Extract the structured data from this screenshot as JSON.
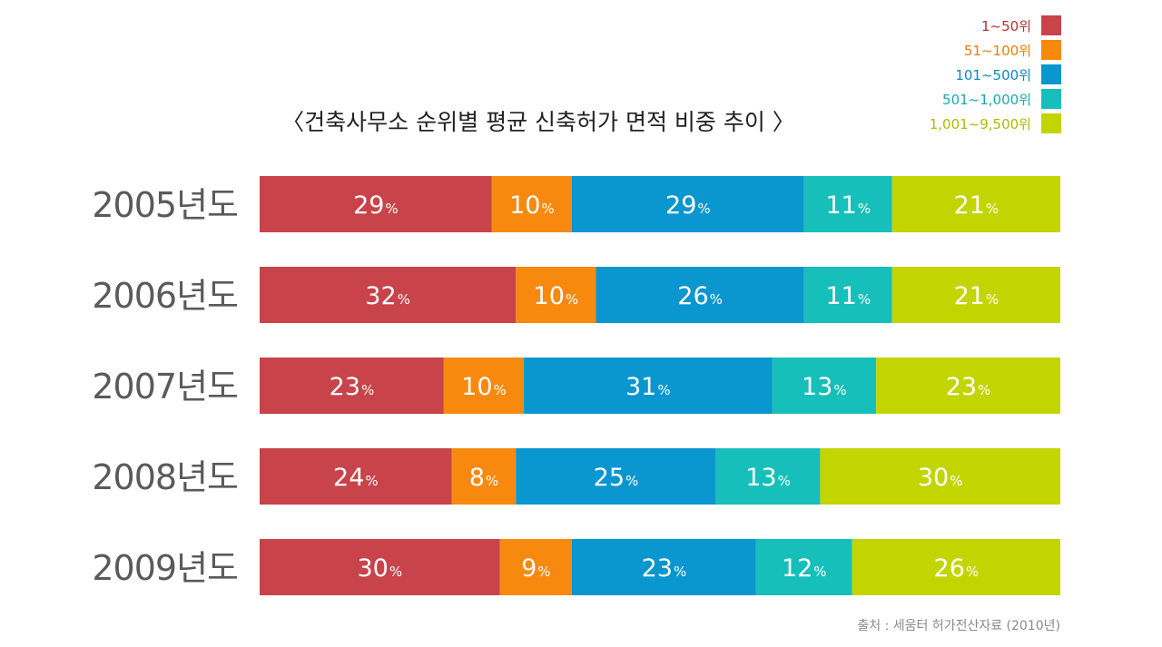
{
  "chart_data": {
    "type": "bar",
    "orientation": "horizontal",
    "stacked": true,
    "title": "〈건축사무소 순위별 평균 신축허가 면적 비중 추이 〉",
    "categories": [
      "2005년도",
      "2006년도",
      "2007년도",
      "2008년도",
      "2009년도"
    ],
    "unit": "%",
    "series": [
      {
        "name": "1~50위",
        "color": "#c8434a",
        "values": [
          29,
          32,
          23,
          24,
          30
        ]
      },
      {
        "name": "51~100위",
        "color": "#f7890f",
        "values": [
          10,
          10,
          10,
          8,
          9
        ]
      },
      {
        "name": "101~500위",
        "color": "#0a96cf",
        "values": [
          29,
          26,
          31,
          25,
          23
        ]
      },
      {
        "name": "501~1,000위",
        "color": "#17bfba",
        "values": [
          11,
          11,
          13,
          13,
          12
        ]
      },
      {
        "name": "1,001~9,500위",
        "color": "#c3d500",
        "values": [
          21,
          21,
          23,
          30,
          26
        ]
      }
    ],
    "legend_position": "top-right",
    "grid": false,
    "source": "출처 : 세움터 허가전산자료 (2010년)"
  }
}
